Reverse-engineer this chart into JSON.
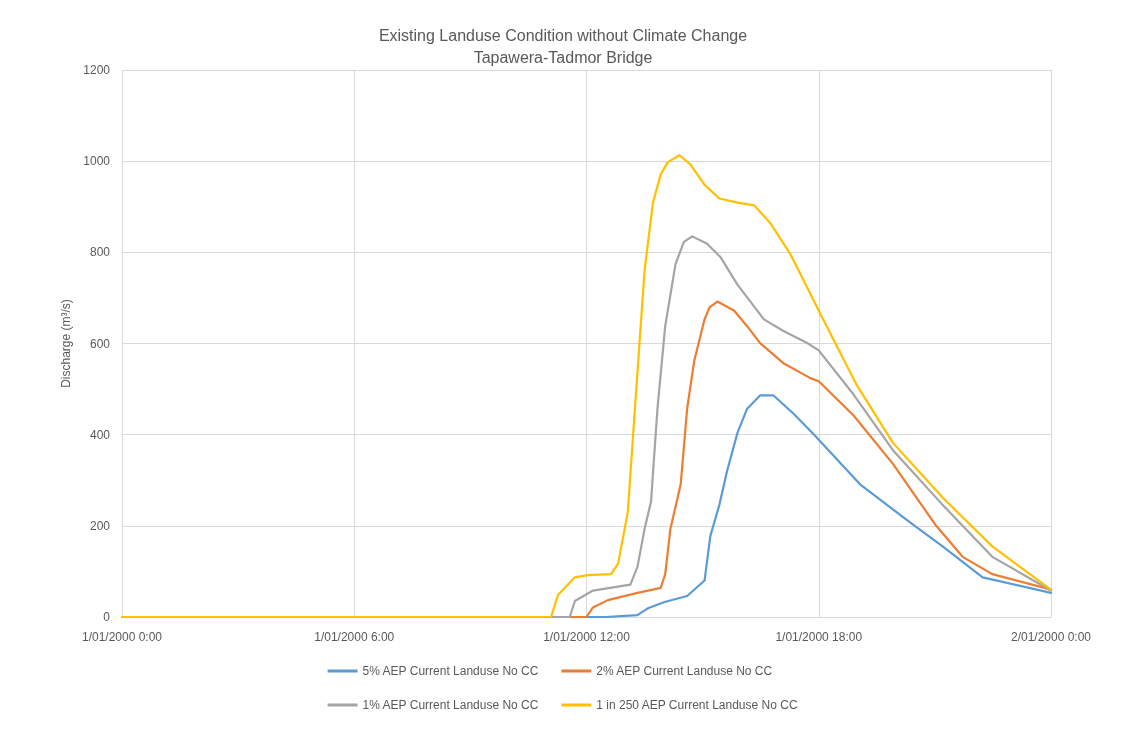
{
  "chart_data": {
    "type": "line",
    "title": "Existing Landuse Condition without Climate Change",
    "subtitle": "Tapawera-Tadmor Bridge",
    "ylabel": "Discharge (m³/s)",
    "xlim": [
      "2000-01-01T00:00",
      "2000-01-02T00:00"
    ],
    "xticks": [
      {
        "value": "2000-01-01T00:00",
        "label": "1/01/2000 0:00"
      },
      {
        "value": "2000-01-01T06:00",
        "label": "1/01/2000 6:00"
      },
      {
        "value": "2000-01-01T12:00",
        "label": "1/01/2000 12:00"
      },
      {
        "value": "2000-01-01T18:00",
        "label": "1/01/2000 18:00"
      },
      {
        "value": "2000-01-02T00:00",
        "label": "2/01/2000 0:00"
      }
    ],
    "ylim": [
      0,
      1200
    ],
    "yticks": [
      0,
      200,
      400,
      600,
      800,
      1000,
      1200
    ],
    "grid": true,
    "legend": "bottom",
    "marker": "none",
    "line_style": "solid",
    "series": [
      {
        "name": "5% AEP Current Landuse No CC",
        "color": "#5b9bd5",
        "x": [
          "2000-01-01T00:00",
          "2000-01-01T12:30",
          "2000-01-01T13:19",
          "2000-01-01T13:35",
          "2000-01-01T14:01",
          "2000-01-01T14:36",
          "2000-01-01T15:03",
          "2000-01-01T15:12",
          "2000-01-01T15:26",
          "2000-01-01T15:38",
          "2000-01-01T15:54",
          "2000-01-01T16:09",
          "2000-01-01T16:29",
          "2000-01-01T16:50",
          "2000-01-01T17:21",
          "2000-01-01T17:54",
          "2000-01-01T18:00",
          "2000-01-01T19:04",
          "2000-01-01T20:22",
          "2000-01-01T21:12",
          "2000-01-01T22:14",
          "2000-01-02T00:00"
        ],
        "values": [
          0,
          0,
          4,
          19,
          33,
          46,
          80,
          178,
          246,
          321,
          404,
          457,
          486,
          486,
          446,
          398,
          389,
          291,
          207,
          155,
          87,
          53
        ]
      },
      {
        "name": "2% AEP Current Landuse No CC",
        "color": "#ed7d31",
        "x": [
          "2000-01-01T00:00",
          "2000-01-01T12:00",
          "2000-01-01T12:10",
          "2000-01-01T12:33",
          "2000-01-01T13:19",
          "2000-01-01T13:55",
          "2000-01-01T14:02",
          "2000-01-01T14:10",
          "2000-01-01T14:26",
          "2000-01-01T14:36",
          "2000-01-01T14:47",
          "2000-01-01T15:03",
          "2000-01-01T15:11",
          "2000-01-01T15:23",
          "2000-01-01T15:49",
          "2000-01-01T16:09",
          "2000-01-01T16:29",
          "2000-01-01T17:06",
          "2000-01-01T17:47",
          "2000-01-01T18:00",
          "2000-01-01T18:54",
          "2000-01-01T19:55",
          "2000-01-01T21:02",
          "2000-01-01T21:43",
          "2000-01-01T22:29",
          "2000-01-02T00:00"
        ],
        "values": [
          0,
          0,
          21,
          37,
          53,
          64,
          94,
          193,
          291,
          457,
          562,
          653,
          680,
          692,
          672,
          638,
          601,
          556,
          524,
          517,
          442,
          336,
          200,
          132,
          94,
          60
        ]
      },
      {
        "name": "1% AEP Current Landuse No CC",
        "color": "#a5a5a5",
        "x": [
          "2000-01-01T00:00",
          "2000-01-01T11:34",
          "2000-01-01T11:42",
          "2000-01-01T12:10",
          "2000-01-01T13:08",
          "2000-01-01T13:19",
          "2000-01-01T13:30",
          "2000-01-01T13:40",
          "2000-01-01T13:50",
          "2000-01-01T14:02",
          "2000-01-01T14:18",
          "2000-01-01T14:31",
          "2000-01-01T14:44",
          "2000-01-01T15:07",
          "2000-01-01T15:28",
          "2000-01-01T15:54",
          "2000-01-01T16:35",
          "2000-01-01T17:06",
          "2000-01-01T17:42",
          "2000-01-01T18:00",
          "2000-01-01T18:54",
          "2000-01-01T19:55",
          "2000-01-01T21:12",
          "2000-01-01T22:29",
          "2000-01-02T00:00"
        ],
        "values": [
          0,
          0,
          35,
          58,
          71,
          110,
          193,
          253,
          457,
          638,
          774,
          823,
          835,
          819,
          789,
          729,
          653,
          627,
          601,
          585,
          488,
          366,
          246,
          132,
          58
        ]
      },
      {
        "name": "1 in 250 AEP Current Landuse No CC",
        "color": "#ffc000",
        "x": [
          "2000-01-01T00:00",
          "2000-01-01T11:05",
          "2000-01-01T11:16",
          "2000-01-01T11:42",
          "2000-01-01T12:02",
          "2000-01-01T12:38",
          "2000-01-01T12:49",
          "2000-01-01T13:04",
          "2000-01-01T13:15",
          "2000-01-01T13:30",
          "2000-01-01T13:43",
          "2000-01-01T13:55",
          "2000-01-01T14:06",
          "2000-01-01T14:24",
          "2000-01-01T14:41",
          "2000-01-01T15:03",
          "2000-01-01T15:26",
          "2000-01-01T15:54",
          "2000-01-01T16:20",
          "2000-01-01T16:45",
          "2000-01-01T17:16",
          "2000-01-01T17:37",
          "2000-01-01T18:01",
          "2000-01-01T18:58",
          "2000-01-01T19:55",
          "2000-01-01T21:12",
          "2000-01-01T22:29",
          "2000-01-02T00:00"
        ],
        "values": [
          0,
          0,
          49,
          87,
          92,
          94,
          117,
          230,
          456,
          760,
          909,
          971,
          998,
          1013,
          993,
          948,
          918,
          909,
          903,
          864,
          796,
          737,
          669,
          511,
          382,
          262,
          155,
          60
        ]
      }
    ]
  }
}
